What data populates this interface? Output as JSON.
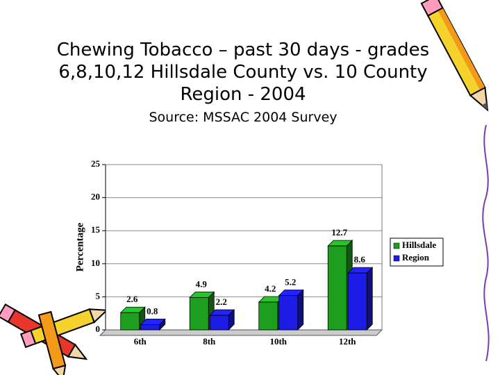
{
  "chart_data": {
    "type": "bar",
    "title": "Chewing Tobacco – past 30 days - grades 6,8,10,12 Hillsdale County vs. 10 County Region - 2004",
    "subtitle": "Source: MSSAC 2004 Survey",
    "ylabel": "Percentage",
    "categories": [
      "6th",
      "8th",
      "10th",
      "12th"
    ],
    "series": [
      {
        "name": "Hillsdale",
        "color": "#1e9e1e",
        "values": [
          2.6,
          4.9,
          4.2,
          12.7
        ]
      },
      {
        "name": "Region",
        "color": "#1c1ce6",
        "values": [
          0.8,
          2.2,
          5.2,
          8.6
        ]
      }
    ],
    "ylim": [
      0,
      25
    ],
    "yticks": [
      0,
      5,
      10,
      15,
      20,
      25
    ],
    "grid": true,
    "legend": "right"
  }
}
